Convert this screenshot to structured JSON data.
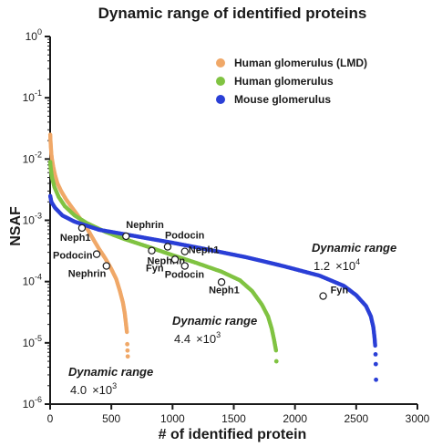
{
  "chart_data": {
    "type": "scatter",
    "title": "Dynamic range of identified proteins",
    "xlabel": "# of identified protein",
    "ylabel": "NSAF",
    "x_ticks": [
      "0",
      "500",
      "1000",
      "1500",
      "2000",
      "2500",
      "3000"
    ],
    "x_tick_values": [
      0,
      500,
      1000,
      1500,
      2000,
      2500,
      3000
    ],
    "xlim": [
      0,
      3000
    ],
    "y_scale": "log",
    "ylim": [
      1e-06,
      1
    ],
    "y_ticks": [
      {
        "value": 1,
        "base": "10",
        "exp": "0"
      },
      {
        "value": 0.1,
        "base": "10",
        "exp": "-1"
      },
      {
        "value": 0.01,
        "base": "10",
        "exp": "-2"
      },
      {
        "value": 0.001,
        "base": "10",
        "exp": "-3"
      },
      {
        "value": 0.0001,
        "base": "10",
        "exp": "-4"
      },
      {
        "value": 1e-05,
        "base": "10",
        "exp": "-5"
      },
      {
        "value": 1e-06,
        "base": "10",
        "exp": "-6"
      }
    ],
    "legend_position": "top-right",
    "grid": false,
    "series": [
      {
        "name": "Human glomerulus (LMD)",
        "color": "#f0a868",
        "points": [
          [
            1,
            0.025
          ],
          [
            3,
            0.02
          ],
          [
            6,
            0.016
          ],
          [
            10,
            0.012
          ],
          [
            15,
            0.01
          ],
          [
            25,
            0.0075
          ],
          [
            40,
            0.0055
          ],
          [
            60,
            0.004
          ],
          [
            90,
            0.003
          ],
          [
            130,
            0.0022
          ],
          [
            180,
            0.0016
          ],
          [
            240,
            0.0011
          ],
          [
            300,
            0.00075
          ],
          [
            350,
            0.0005
          ],
          [
            400,
            0.00034
          ],
          [
            450,
            0.00024
          ],
          [
            500,
            0.00016
          ],
          [
            540,
            0.00011
          ],
          [
            570,
            7e-05
          ],
          [
            595,
            4.5e-05
          ],
          [
            610,
            3e-05
          ],
          [
            620,
            2e-05
          ],
          [
            627,
            1.5e-05
          ]
        ],
        "outliers": [
          [
            630,
            9.5e-06
          ],
          [
            632,
            7.5e-06
          ],
          [
            634,
            6e-06
          ]
        ]
      },
      {
        "name": "Human glomerulus",
        "color": "#80c342",
        "points": [
          [
            1,
            0.009
          ],
          [
            5,
            0.007
          ],
          [
            15,
            0.005
          ],
          [
            35,
            0.0035
          ],
          [
            70,
            0.0024
          ],
          [
            120,
            0.0017
          ],
          [
            200,
            0.0012
          ],
          [
            300,
            0.0009
          ],
          [
            450,
            0.00065
          ],
          [
            600,
            0.0005
          ],
          [
            800,
            0.00037
          ],
          [
            1000,
            0.00027
          ],
          [
            1200,
            0.0002
          ],
          [
            1400,
            0.000145
          ],
          [
            1550,
            0.000105
          ],
          [
            1650,
            7e-05
          ],
          [
            1730,
            4.2e-05
          ],
          [
            1780,
            2.7e-05
          ],
          [
            1810,
            1.7e-05
          ],
          [
            1830,
            1.1e-05
          ],
          [
            1845,
            7.5e-06
          ]
        ],
        "outliers": [
          [
            1848,
            5e-06
          ]
        ]
      },
      {
        "name": "Mouse glomerulus",
        "color": "#2a3fd6",
        "points": [
          [
            1,
            0.0025
          ],
          [
            10,
            0.002
          ],
          [
            40,
            0.0016
          ],
          [
            100,
            0.0012
          ],
          [
            200,
            0.00095
          ],
          [
            400,
            0.0007
          ],
          [
            700,
            0.00055
          ],
          [
            1000,
            0.00043
          ],
          [
            1300,
            0.00033
          ],
          [
            1600,
            0.00025
          ],
          [
            1900,
            0.00018
          ],
          [
            2200,
            0.000125
          ],
          [
            2400,
            8.5e-05
          ],
          [
            2500,
            6e-05
          ],
          [
            2580,
            4e-05
          ],
          [
            2620,
            2.7e-05
          ],
          [
            2640,
            1.8e-05
          ],
          [
            2650,
            1.2e-05
          ],
          [
            2655,
            9e-06
          ]
        ],
        "outliers": [
          [
            2658,
            6.5e-06
          ],
          [
            2660,
            4.5e-06
          ],
          [
            2662,
            2.5e-06
          ]
        ]
      }
    ],
    "markers": [
      {
        "label": "Neph1",
        "x": 260,
        "y": 0.00075
      },
      {
        "label": "Podocin",
        "x": 380,
        "y": 0.00028
      },
      {
        "label": "Nephrin",
        "x": 460,
        "y": 0.00018
      },
      {
        "label": "Nephrin",
        "x": 620,
        "y": 0.00055
      },
      {
        "label": "Nephrin",
        "x": 830,
        "y": 0.00032
      },
      {
        "label": "Fyn",
        "x": 1020,
        "y": 0.00023
      },
      {
        "label": "Podocin",
        "x": 1100,
        "y": 0.00018
      },
      {
        "label": "Podocin",
        "x": 960,
        "y": 0.00037
      },
      {
        "label": "Neph1",
        "x": 1100,
        "y": 0.00031
      },
      {
        "label": "Neph1",
        "x": 1400,
        "y": 9.8e-05
      },
      {
        "label": "Fyn",
        "x": 2230,
        "y": 5.8e-05
      }
    ],
    "annotations": [
      {
        "title": "Dynamic range",
        "mantissa": "4.0",
        "times": "×",
        "base": "10",
        "exp": "3"
      },
      {
        "title": "Dynamic range",
        "mantissa": "4.4",
        "times": "×",
        "base": "10",
        "exp": "3"
      },
      {
        "title": "Dynamic range",
        "mantissa": "1.2",
        "times": "×",
        "base": "10",
        "exp": "4"
      }
    ]
  }
}
